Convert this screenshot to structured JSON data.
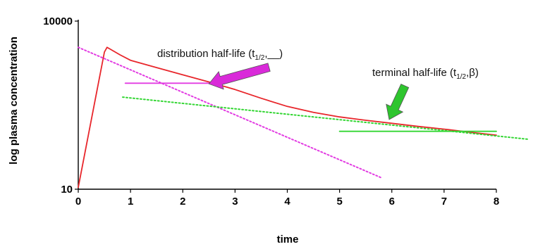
{
  "chart_data": {
    "type": "line",
    "xlabel": "time",
    "ylabel": "log plasma concentration",
    "xlim": [
      0,
      8
    ],
    "y_scale": "log",
    "ylim": [
      10,
      10000
    ],
    "x_ticks": [
      "0",
      "1",
      "2",
      "3",
      "4",
      "5",
      "6",
      "7",
      "8"
    ],
    "y_ticks": [
      {
        "value": 10,
        "label": "10"
      },
      {
        "value": 10000,
        "label": "10000"
      }
    ],
    "grid": false,
    "series": [
      {
        "color": "#e8262b",
        "style": "solid",
        "x": [
          0,
          0.5,
          0.55,
          0.6,
          0.8,
          1.0,
          1.5,
          2.0,
          2.5,
          3.0,
          3.5,
          4.0,
          4.5,
          5.0,
          5.5,
          6.0,
          6.5,
          7.0,
          7.5,
          8.0
        ],
        "y": [
          10.8,
          2800,
          3400,
          3200,
          2500,
          2000,
          1480,
          1100,
          820,
          600,
          420,
          300,
          235,
          195,
          170,
          150,
          132,
          118,
          104,
          92
        ]
      },
      {
        "color": "#e23be2",
        "style": "dotted",
        "x": [
          0,
          5.8
        ],
        "y": [
          3400,
          16
        ]
      },
      {
        "color": "#e23be2",
        "style": "solid",
        "x": [
          0.9,
          2.6
        ],
        "y": [
          780,
          780
        ]
      },
      {
        "color": "#33d633",
        "style": "dotted",
        "x": [
          0.85,
          8.6
        ],
        "y": [
          440,
          78
        ]
      },
      {
        "color": "#33d633",
        "style": "solid",
        "x": [
          5.0,
          8.0
        ],
        "y": [
          108,
          108
        ]
      }
    ],
    "annotations": [
      {
        "text": "distribution half-life (t",
        "subscript": "1/2",
        "suffix": ",__)",
        "arrow_color": "#d92ad9",
        "arrow_from": [
          3.65,
          1500
        ],
        "arrow_to": [
          2.5,
          760
        ]
      },
      {
        "text": "terminal half-life (t",
        "subscript": "1/2",
        "suffix": ",β)",
        "arrow_color": "#2ec52e",
        "arrow_from": [
          6.25,
          700
        ],
        "arrow_to": [
          5.95,
          175
        ]
      }
    ]
  }
}
